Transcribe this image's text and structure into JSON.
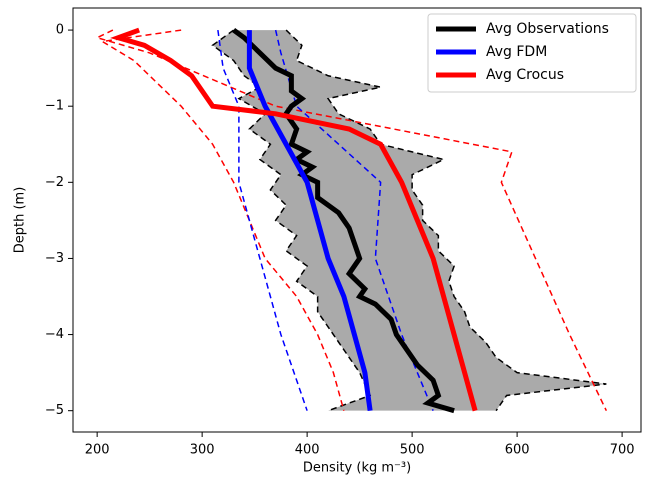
{
  "chart_data": {
    "type": "line",
    "x_label": "Density (kg m⁻³)",
    "y_label": "Depth (m)",
    "xlim": [
      177,
      718
    ],
    "ylim": [
      -5.28,
      0.29
    ],
    "xticks": [
      200,
      300,
      400,
      500,
      600,
      700
    ],
    "yticks": [
      0,
      {
        "value": -1,
        "label": "−1"
      },
      {
        "value": -2,
        "label": "−2"
      },
      {
        "value": -3,
        "label": "−3"
      },
      {
        "value": -4,
        "label": "−4"
      },
      {
        "value": -5,
        "label": "−5"
      }
    ],
    "legend": "upper right",
    "envelope": {
      "fill": "#aaaaaa",
      "color": "#000000",
      "y": [
        0,
        -0.2,
        -0.4,
        -0.6,
        -0.75,
        -0.9,
        -1.1,
        -1.3,
        -1.5,
        -1.7,
        -1.9,
        -2.1,
        -2.3,
        -2.5,
        -2.7,
        -2.9,
        -3.1,
        -3.3,
        -3.5,
        -3.7,
        -3.9,
        -4.1,
        -4.3,
        -4.5,
        -4.65,
        -4.8,
        -5.0
      ],
      "lower": [
        330,
        310,
        330,
        340,
        355,
        335,
        360,
        345,
        365,
        355,
        375,
        365,
        380,
        370,
        390,
        380,
        400,
        390,
        410,
        410,
        420,
        430,
        440,
        450,
        455,
        460,
        420
      ],
      "upper": [
        380,
        395,
        390,
        420,
        470,
        420,
        430,
        460,
        470,
        530,
        500,
        500,
        510,
        510,
        525,
        525,
        540,
        535,
        540,
        550,
        555,
        570,
        580,
        600,
        685,
        590,
        580
      ]
    },
    "bounds": [
      {
        "color": "#ff0000",
        "x": [
          280,
          205,
          235,
          280,
          310,
          330,
          345,
          360,
          390,
          410,
          425,
          435
        ],
        "y": [
          0,
          -0.15,
          -0.4,
          -1.0,
          -1.5,
          -2,
          -2.5,
          -3,
          -3.5,
          -4,
          -4.5,
          -5
        ]
      },
      {
        "color": "#ff0000",
        "x": [
          215,
          200,
          250,
          370,
          595,
          585,
          650,
          685
        ],
        "y": [
          0,
          -0.1,
          -0.3,
          -1.0,
          -1.6,
          -2.0,
          -4.0,
          -5.0
        ]
      },
      {
        "color": "#0000ff",
        "x": [
          315,
          320,
          335,
          335,
          355,
          375,
          400
        ],
        "y": [
          0,
          -0.5,
          -1,
          -2,
          -3,
          -4,
          -5
        ]
      },
      {
        "color": "#0000ff",
        "x": [
          370,
          375,
          390,
          470,
          465,
          490,
          520
        ],
        "y": [
          0,
          -0.3,
          -1,
          -2,
          -3,
          -4,
          -5
        ]
      }
    ],
    "series": [
      {
        "name": "Avg Observations",
        "color": "#000000",
        "x": [
          330,
          340,
          355,
          370,
          385,
          385,
          395,
          385,
          380,
          390,
          385,
          400,
          390,
          405,
          395,
          410,
          410,
          430,
          440,
          445,
          450,
          440,
          455,
          450,
          465,
          480,
          485,
          495,
          505,
          520,
          525,
          515,
          540
        ],
        "y": [
          0,
          -0.1,
          -0.3,
          -0.5,
          -0.6,
          -0.8,
          -0.9,
          -1.0,
          -1.1,
          -1.3,
          -1.5,
          -1.6,
          -1.7,
          -1.8,
          -1.9,
          -2.0,
          -2.2,
          -2.4,
          -2.6,
          -2.8,
          -3.0,
          -3.2,
          -3.4,
          -3.5,
          -3.6,
          -3.8,
          -4.0,
          -4.2,
          -4.4,
          -4.6,
          -4.8,
          -4.9,
          -5.0
        ]
      },
      {
        "name": "Avg FDM",
        "color": "#0000ff",
        "x": [
          345,
          345,
          360,
          380,
          400,
          410,
          420,
          435,
          445,
          455,
          460
        ],
        "y": [
          0,
          -0.5,
          -1,
          -1.5,
          -2,
          -2.5,
          -3,
          -3.5,
          -4,
          -4.5,
          -5
        ]
      },
      {
        "name": "Avg Crocus",
        "color": "#ff0000",
        "x": [
          240,
          220,
          245,
          270,
          290,
          310,
          370,
          440,
          470,
          490,
          505,
          520,
          530,
          540,
          550,
          560
        ],
        "y": [
          0,
          -0.1,
          -0.2,
          -0.4,
          -0.6,
          -1.0,
          -1.1,
          -1.3,
          -1.5,
          -2.0,
          -2.5,
          -3.0,
          -3.5,
          -4.0,
          -4.5,
          -5.0
        ]
      }
    ]
  }
}
